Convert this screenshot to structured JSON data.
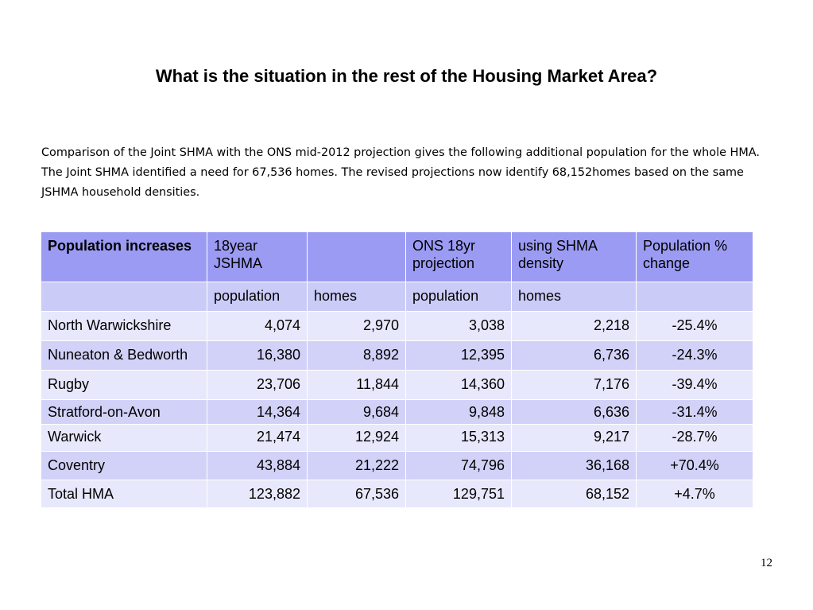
{
  "title": "What is the situation in the rest of the Housing Market Area?",
  "intro": "Comparison of the Joint SHMA with the ONS mid-2012 projection gives the following  additional population for the whole HMA. The Joint SHMA identified a need for 67,536 homes. The revised projections now identify 68,152homes based on the same JSHMA household densities.",
  "table": {
    "header1": [
      "Population increases",
      "18year JSHMA",
      "",
      "ONS 18yr projection",
      "using SHMA density",
      "Population % change"
    ],
    "header2": [
      "",
      "population",
      "homes",
      "population",
      "homes",
      ""
    ],
    "rows": [
      [
        "North Warwickshire",
        "4,074",
        "2,970",
        "3,038",
        "2,218",
        "-25.4%"
      ],
      [
        "Nuneaton & Bedworth",
        "16,380",
        "8,892",
        "12,395",
        "6,736",
        "-24.3%"
      ],
      [
        "Rugby",
        "23,706",
        "11,844",
        "14,360",
        "7,176",
        "-39.4%"
      ],
      [
        "Stratford-on-Avon",
        "14,364",
        "9,684",
        "9,848",
        "6,636",
        "-31.4%"
      ],
      [
        "Warwick",
        "21,474",
        "12,924",
        "15,313",
        "9,217",
        "-28.7%"
      ],
      [
        "Coventry",
        "43,884",
        "21,222",
        "74,796",
        "36,168",
        "+70.4%"
      ],
      [
        "Total HMA",
        "123,882",
        "67,536",
        "129,751",
        "68,152",
        "+4.7%"
      ]
    ]
  },
  "colors": {
    "header_dark": "#9b9bf4",
    "header_light": "#cbcbf8",
    "row_light": "#e8e8fc",
    "row_medium": "#d2d2f8"
  },
  "page_number": "12"
}
